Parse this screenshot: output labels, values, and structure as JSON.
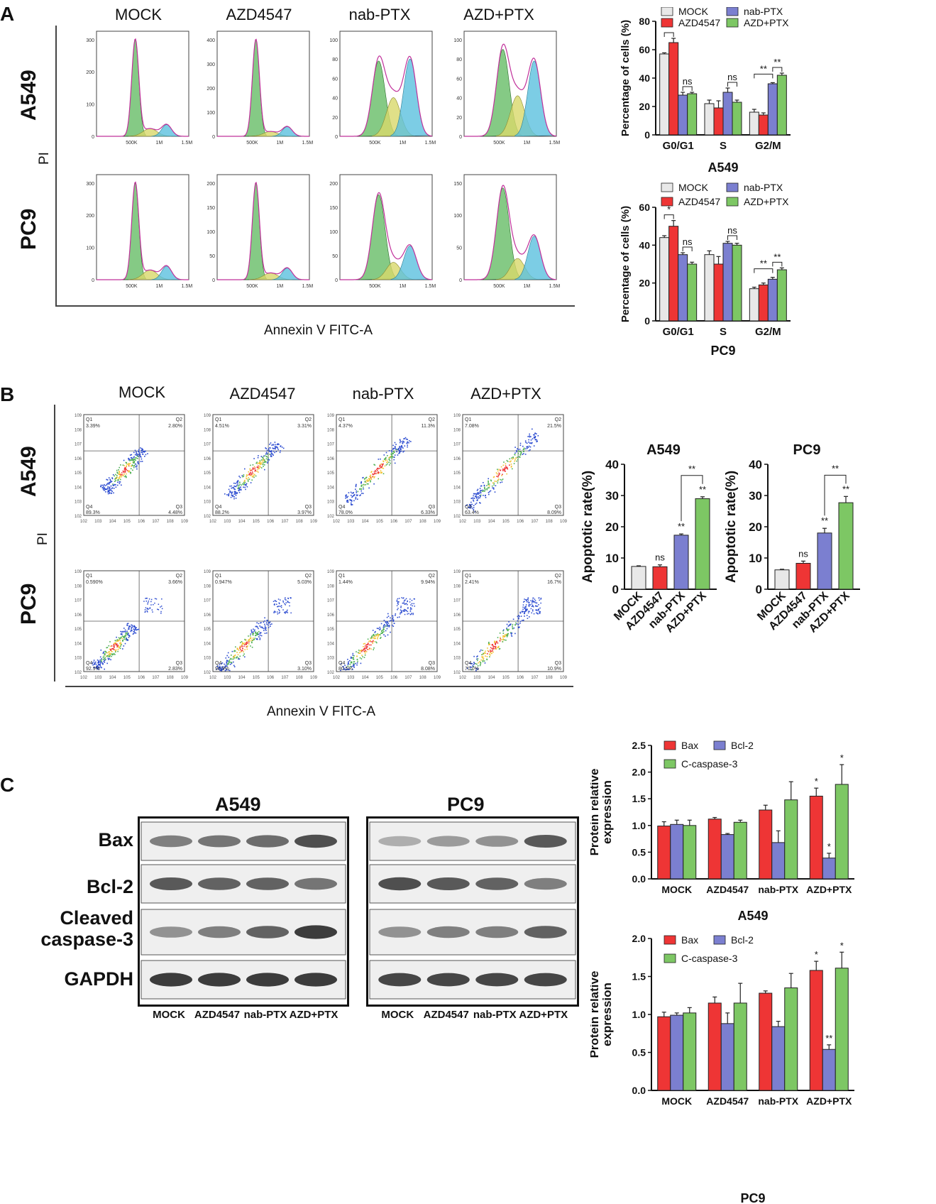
{
  "panel_a": {
    "letter": "A",
    "columns": [
      "MOCK",
      "AZD4547",
      "nab-PTX",
      "AZD+PTX"
    ],
    "rows": [
      "A549",
      "PC9"
    ],
    "y_axis_label": "PI",
    "x_axis_label": "Annexin V FITC-A",
    "histogram_x_ticks": [
      "500K",
      "1M",
      "1.5M"
    ],
    "histogram_y_ticks": {
      "A549": [
        [
          "0",
          "100",
          "200",
          "300"
        ],
        [
          "0",
          "100",
          "200",
          "300",
          "400"
        ],
        [
          "0",
          "20",
          "40",
          "60",
          "80",
          "100"
        ],
        [
          "0",
          "20",
          "40",
          "60",
          "80",
          "100"
        ]
      ],
      "PC9": [
        [
          "0",
          "100",
          "200",
          "300"
        ],
        [
          "0",
          "50",
          "100",
          "150",
          "200"
        ],
        [
          "0",
          "50",
          "100",
          "150",
          "200"
        ],
        [
          "0",
          "50",
          "100",
          "150"
        ]
      ]
    }
  },
  "panel_b": {
    "letter": "B",
    "columns": [
      "MOCK",
      "AZD4547",
      "nab-PTX",
      "AZD+PTX"
    ],
    "rows": [
      "A549",
      "PC9"
    ],
    "y_axis_label": "PI",
    "x_axis_label": "Annexin V FITC-A",
    "quadrants": {
      "A549": [
        {
          "Q1": "3.39%",
          "Q2": "2.80%",
          "Q3": "4.48%",
          "Q4": "89.3%"
        },
        {
          "Q1": "4.51%",
          "Q2": "3.31%",
          "Q3": "3.97%",
          "Q4": "88.2%"
        },
        {
          "Q1": "4.37%",
          "Q2": "11.3%",
          "Q3": "6.33%",
          "Q4": "78.0%"
        },
        {
          "Q1": "7.08%",
          "Q2": "21.5%",
          "Q3": "8.09%",
          "Q4": "63.4%"
        }
      ],
      "PC9": [
        {
          "Q1": "0.590%",
          "Q2": "3.66%",
          "Q3": "2.83%",
          "Q4": "92.9%"
        },
        {
          "Q1": "0.947%",
          "Q2": "5.03%",
          "Q3": "3.10%",
          "Q4": "90.9%"
        },
        {
          "Q1": "1.44%",
          "Q2": "9.94%",
          "Q3": "8.08%",
          "Q4": "80.5%"
        },
        {
          "Q1": "2.41%",
          "Q2": "16.7%",
          "Q3": "10.9%",
          "Q4": "70.0%"
        }
      ]
    },
    "q_names": [
      "Q1",
      "Q2",
      "Q3",
      "Q4"
    ]
  },
  "panel_c": {
    "letter": "C",
    "blots": [
      {
        "title": "A549",
        "lanes": [
          "MOCK",
          "AZD4547",
          "nab-PTX",
          "AZD+PTX"
        ]
      },
      {
        "title": "PC9",
        "lanes": [
          "MOCK",
          "AZD4547",
          "nab-PTX",
          "AZD+PTX"
        ]
      }
    ],
    "proteins": [
      "Bax",
      "Bcl-2",
      "Cleaved caspase-3",
      "GAPDH"
    ],
    "protein_lines": [
      [
        "Bax"
      ],
      [
        "Bcl-2"
      ],
      [
        "Cleaved",
        "caspase-3"
      ],
      [
        "GAPDH"
      ]
    ]
  },
  "colors": {
    "mock": "#e8e8e8",
    "azd": "#ee3535",
    "nab": "#7b7fd0",
    "combo": "#7dc764",
    "bax": "#ee3535",
    "bcl2": "#7b7fd0",
    "ccasp": "#7dc764"
  },
  "chart_data": [
    {
      "id": "cellcycle-a549",
      "type": "bar",
      "title": "A549",
      "ylabel": "Percentage of cells (%)",
      "ylim": [
        0,
        80
      ],
      "yticks": [
        0,
        20,
        40,
        60,
        80
      ],
      "categories": [
        "G0/G1",
        "S",
        "G2/M"
      ],
      "legend": [
        "MOCK",
        "AZD4547",
        "nab-PTX",
        "AZD+PTX"
      ],
      "series": [
        {
          "name": "MOCK",
          "values": [
            57,
            22,
            16
          ],
          "errors": [
            0.8,
            2.5,
            2
          ]
        },
        {
          "name": "AZD4547",
          "values": [
            65,
            19,
            14
          ],
          "errors": [
            3,
            5,
            1.5
          ]
        },
        {
          "name": "nab-PTX",
          "values": [
            28,
            30,
            36
          ],
          "errors": [
            2,
            3,
            0.8
          ]
        },
        {
          "name": "AZD+PTX",
          "values": [
            29,
            23,
            42
          ],
          "errors": [
            1,
            1.5,
            1.5
          ]
        }
      ],
      "annotations": [
        {
          "label": "**",
          "cat": 0,
          "from": 0,
          "to": 1
        },
        {
          "label": "ns",
          "cat": 0,
          "from": 2,
          "to": 3
        },
        {
          "label": "ns",
          "cat": 1,
          "from": 2,
          "to": 3
        },
        {
          "label": "**",
          "cat": 2,
          "from": 0,
          "to": 2
        },
        {
          "label": "**",
          "cat": 2,
          "from": 2,
          "to": 3
        }
      ]
    },
    {
      "id": "cellcycle-pc9",
      "type": "bar",
      "title": "PC9",
      "ylabel": "Percentage of cells (%)",
      "ylim": [
        0,
        60
      ],
      "yticks": [
        0,
        20,
        40,
        60
      ],
      "categories": [
        "G0/G1",
        "S",
        "G2/M"
      ],
      "legend": [
        "MOCK",
        "AZD4547",
        "nab-PTX",
        "AZD+PTX"
      ],
      "series": [
        {
          "name": "MOCK",
          "values": [
            44,
            35,
            17
          ],
          "errors": [
            1,
            2,
            0.8
          ]
        },
        {
          "name": "AZD4547",
          "values": [
            50,
            30,
            19
          ],
          "errors": [
            3,
            4,
            1
          ]
        },
        {
          "name": "nab-PTX",
          "values": [
            35,
            41,
            22
          ],
          "errors": [
            1,
            1,
            1
          ]
        },
        {
          "name": "AZD+PTX",
          "values": [
            30,
            40,
            27
          ],
          "errors": [
            1,
            1,
            1
          ]
        }
      ],
      "annotations": [
        {
          "label": "*",
          "cat": 0,
          "from": 0,
          "to": 1
        },
        {
          "label": "ns",
          "cat": 0,
          "from": 2,
          "to": 3
        },
        {
          "label": "ns",
          "cat": 1,
          "from": 2,
          "to": 3
        },
        {
          "label": "**",
          "cat": 2,
          "from": 0,
          "to": 2
        },
        {
          "label": "**",
          "cat": 2,
          "from": 2,
          "to": 3
        }
      ]
    },
    {
      "id": "apoptosis-a549",
      "type": "bar",
      "title": "A549",
      "ylabel": "Apoptotic rate(%)",
      "ylim": [
        0,
        40
      ],
      "yticks": [
        0,
        10,
        20,
        30,
        40
      ],
      "categories": [
        "MOCK",
        "AZD4547",
        "nab-PTX",
        "AZD+PTX"
      ],
      "values": [
        7.3,
        7.2,
        17.3,
        29
      ],
      "errors": [
        0.2,
        0.6,
        0.4,
        0.6
      ],
      "bar_labels": [
        "",
        "ns",
        "**",
        "**"
      ],
      "bracket": {
        "label": "**",
        "from": 2,
        "to": 3
      }
    },
    {
      "id": "apoptosis-pc9",
      "type": "bar",
      "title": "PC9",
      "ylabel": "Apoptotic rate(%)",
      "ylim": [
        0,
        40
      ],
      "yticks": [
        0,
        10,
        20,
        30,
        40
      ],
      "categories": [
        "MOCK",
        "AZD4547",
        "nab-PTX",
        "AZD+PTX"
      ],
      "values": [
        6.2,
        8.3,
        18,
        27.7
      ],
      "errors": [
        0.2,
        0.7,
        1.5,
        2
      ],
      "bar_labels": [
        "",
        "ns",
        "**",
        "**"
      ],
      "bracket": {
        "label": "**",
        "from": 2,
        "to": 3
      }
    },
    {
      "id": "protein-a549",
      "type": "bar",
      "title": "A549",
      "ylabel": "Protein relative expression",
      "ylim": [
        0,
        2.5
      ],
      "yticks": [
        "0.0",
        "0.5",
        "1.0",
        "1.5",
        "2.0",
        "2.5"
      ],
      "categories": [
        "MOCK",
        "AZD4547",
        "nab-PTX",
        "AZD+PTX"
      ],
      "legend": [
        "Bax",
        "Bcl-2",
        "C-caspase-3"
      ],
      "series": [
        {
          "name": "Bax",
          "values": [
            0.99,
            1.12,
            1.29,
            1.55
          ],
          "errors": [
            0.08,
            0.03,
            0.09,
            0.15
          ],
          "labels": [
            "",
            "",
            "",
            "*"
          ]
        },
        {
          "name": "Bcl-2",
          "values": [
            1.02,
            0.83,
            0.68,
            0.39
          ],
          "errors": [
            0.08,
            0.02,
            0.22,
            0.09
          ],
          "labels": [
            "",
            "",
            "",
            "*"
          ]
        },
        {
          "name": "C-caspase-3",
          "values": [
            1.0,
            1.06,
            1.48,
            1.77
          ],
          "errors": [
            0.1,
            0.04,
            0.34,
            0.37
          ],
          "labels": [
            "",
            "",
            "",
            "*"
          ]
        }
      ]
    },
    {
      "id": "protein-pc9",
      "type": "bar",
      "title": "PC9",
      "ylabel": "Protein relative expression",
      "ylim": [
        0,
        2.0
      ],
      "yticks": [
        "0.0",
        "0.5",
        "1.0",
        "1.5",
        "2.0"
      ],
      "categories": [
        "MOCK",
        "AZD4547",
        "nab-PTX",
        "AZD+PTX"
      ],
      "legend": [
        "Bax",
        "Bcl-2",
        "C-caspase-3"
      ],
      "series": [
        {
          "name": "Bax",
          "values": [
            0.97,
            1.15,
            1.28,
            1.58
          ],
          "errors": [
            0.06,
            0.08,
            0.03,
            0.12
          ],
          "labels": [
            "",
            "",
            "",
            "*"
          ]
        },
        {
          "name": "Bcl-2",
          "values": [
            0.99,
            0.88,
            0.84,
            0.54
          ],
          "errors": [
            0.03,
            0.14,
            0.07,
            0.06
          ],
          "labels": [
            "",
            "",
            "",
            "**"
          ]
        },
        {
          "name": "C-caspase-3",
          "values": [
            1.02,
            1.15,
            1.35,
            1.61
          ],
          "errors": [
            0.07,
            0.26,
            0.19,
            0.21
          ],
          "labels": [
            "",
            "",
            "",
            "*"
          ]
        }
      ]
    }
  ]
}
